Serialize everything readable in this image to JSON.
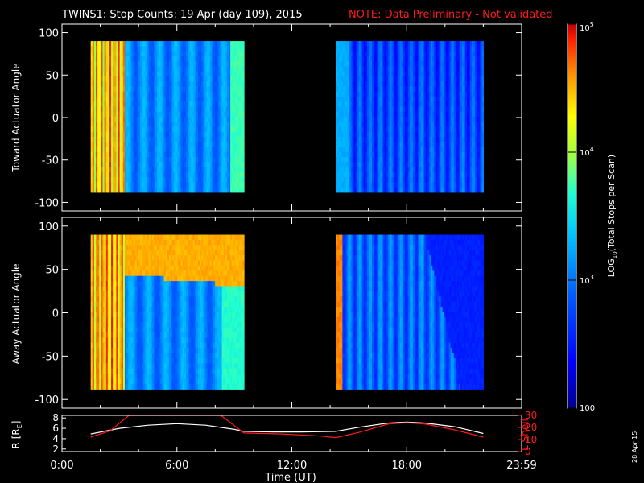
{
  "title": "TWINS1: Stop Counts: 19 Apr (day 109), 2015",
  "note": "NOTE: Data Preliminary - Not validated",
  "creation_date": "28 Apr 15",
  "chart_data": [
    {
      "type": "heatmap",
      "ylabel": "Toward Actuator Angle",
      "yticks": [
        "100",
        "50",
        "0",
        "-50",
        "-100"
      ],
      "ylim": [
        -110,
        110
      ],
      "data_ylim": [
        -88,
        90
      ],
      "segments": [
        {
          "x_start_hr": 1.5,
          "x_end_hr": 9.5,
          "profile": "toward_a"
        },
        {
          "x_start_hr": 14.3,
          "x_end_hr": 22.0,
          "profile": "toward_b"
        }
      ]
    },
    {
      "type": "heatmap",
      "ylabel": "Away Actuator Angle",
      "yticks": [
        "100",
        "50",
        "0",
        "-50",
        "-100"
      ],
      "ylim": [
        -110,
        110
      ],
      "data_ylim": [
        -88,
        90
      ],
      "segments": [
        {
          "x_start_hr": 1.5,
          "x_end_hr": 9.5,
          "profile": "away_a"
        },
        {
          "x_start_hr": 14.3,
          "x_end_hr": 22.0,
          "profile": "away_b"
        }
      ]
    },
    {
      "type": "line",
      "ylabel_left": "R [R",
      "ylabel_left_sub": "E",
      "ylabel_left_end": "]",
      "ylabel_right": "L Shell",
      "yticks_left": [
        "8",
        "6",
        "4",
        "2"
      ],
      "yticks_right": [
        "30",
        "20",
        "10",
        "0"
      ],
      "ylim_left": [
        1.5,
        8.5
      ],
      "ylim_right": [
        0,
        30
      ],
      "series": [
        {
          "color": "#ffffff",
          "x": [
            1.5,
            3,
            4.5,
            6,
            7.5,
            9,
            9.5,
            11,
            12.5,
            14.3,
            15.5,
            17,
            18,
            19,
            20.5,
            22.0
          ],
          "y": [
            4.9,
            6.0,
            6.6,
            6.9,
            6.6,
            5.8,
            5.4,
            5.3,
            5.3,
            5.4,
            6.2,
            7.0,
            7.2,
            7.0,
            6.3,
            5.0
          ]
        },
        {
          "color": "#ff1a1a",
          "x": [
            1.5,
            2.5,
            3.5,
            3.8,
            7.9,
            8.3,
            9.5,
            11.5,
            13.5,
            14.3,
            15.5,
            17,
            18,
            19,
            20.5,
            22.0
          ],
          "y": [
            4.3,
            5.5,
            8.5,
            8.5,
            8.5,
            8.5,
            5.1,
            4.9,
            4.5,
            4.2,
            5.2,
            6.8,
            7.1,
            6.8,
            5.7,
            4.3
          ]
        }
      ]
    }
  ],
  "xaxis": {
    "label": "Time (UT)",
    "ticks": [
      {
        "hr": 0,
        "label": "0:00"
      },
      {
        "hr": 6,
        "label": "6:00"
      },
      {
        "hr": 12,
        "label": "12:00"
      },
      {
        "hr": 18,
        "label": "18:00"
      },
      {
        "hr": 24,
        "label": "23:59"
      }
    ]
  },
  "colorbar": {
    "label": "LOG",
    "label_sub": "10",
    "label_end": "(Total Stops per Scan)",
    "ticks": [
      {
        "value": 100000,
        "base": "10",
        "exp": "5"
      },
      {
        "value": 10000,
        "base": "10",
        "exp": "4"
      },
      {
        "value": 1000,
        "base": "10",
        "exp": "3"
      },
      {
        "value": 100,
        "base": "100",
        "exp": ""
      }
    ],
    "range": [
      100,
      100000
    ],
    "scale": "log"
  }
}
